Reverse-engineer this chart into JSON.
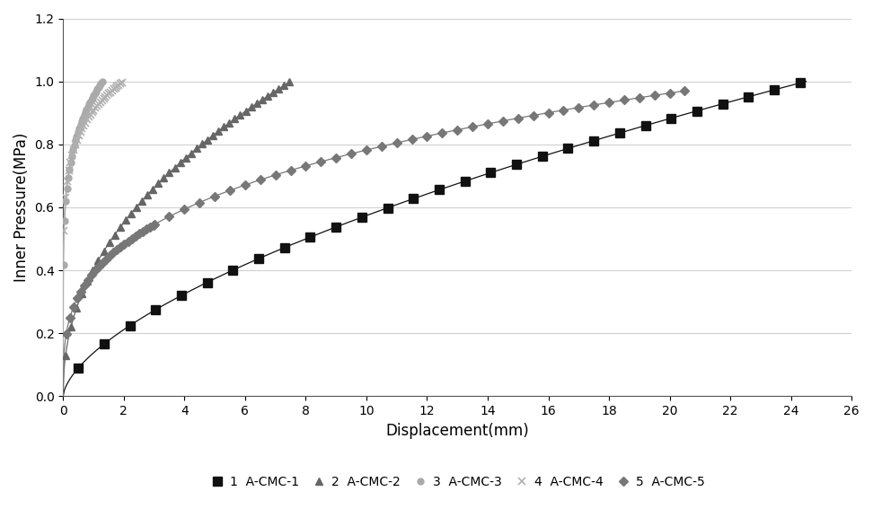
{
  "xlabel": "Displacement(mm)",
  "ylabel": "Inner Pressure(MPa)",
  "xlim": [
    0,
    26
  ],
  "ylim": [
    0,
    1.2
  ],
  "xticks": [
    0,
    2,
    4,
    6,
    8,
    10,
    12,
    14,
    16,
    18,
    20,
    22,
    24,
    26
  ],
  "yticks": [
    0,
    0.2,
    0.4,
    0.6,
    0.8,
    1.0,
    1.2
  ],
  "legend_labels": [
    "1  A-CMC-1",
    "2  A-CMC-2",
    "3  A-CMC-3",
    "4  A-CMC-4",
    "5  A-CMC-5"
  ],
  "colors": [
    "#111111",
    "#666666",
    "#aaaaaa",
    "#b0b0b0",
    "#777777"
  ],
  "background_color": "#ffffff",
  "grid_color": "#d0d0d0",
  "curve1_xmax": 24.5,
  "curve2_xmax": 7.5,
  "curve3_xmax": 1.3,
  "curve4_xmax": 2.0,
  "curve5_xmax": 20.5,
  "curve5_plateau": 0.97
}
